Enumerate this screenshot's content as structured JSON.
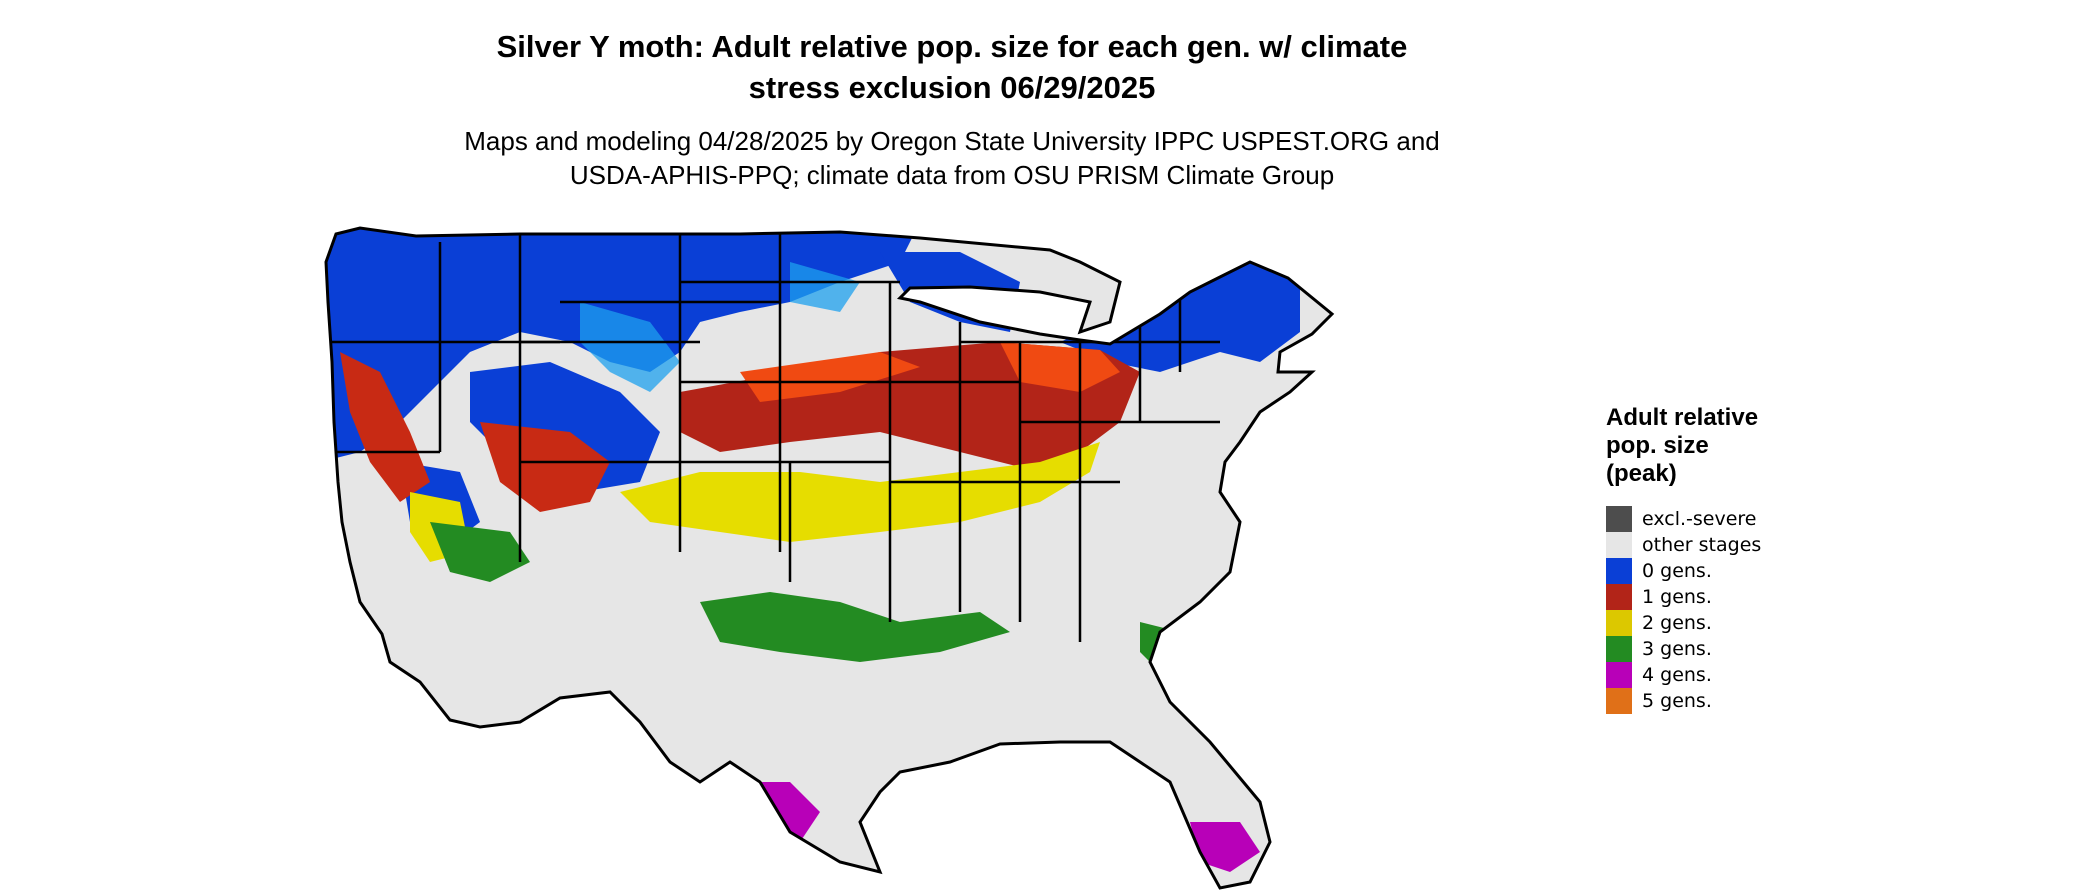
{
  "title": {
    "line1": "Silver Y moth: Adult relative pop. size for each gen. w/ climate",
    "line2": "stress exclusion 06/29/2025"
  },
  "subtitle": {
    "line1": "Maps and modeling 04/28/2025 by Oregon State University IPPC USPEST.ORG and",
    "line2": "USDA-APHIS-PPQ; climate data from OSU PRISM Climate Group"
  },
  "legend": {
    "title_line1": "Adult relative",
    "title_line2": "pop. size",
    "title_line3": "(peak)",
    "items": [
      {
        "label": "excl.-severe",
        "color": "#4d4d4d"
      },
      {
        "label": "other stages",
        "color": "#e6e6e6"
      },
      {
        "label": "0 gens.",
        "color": "#0a3fd6"
      },
      {
        "label": "1 gens.",
        "color": "#b22418"
      },
      {
        "label": "2 gens.",
        "color": "#dcc800"
      },
      {
        "label": "3 gens.",
        "color": "#238b22"
      },
      {
        "label": "4 gens.",
        "color": "#b800b8"
      },
      {
        "label": "5 gens.",
        "color": "#e07018"
      }
    ]
  }
}
